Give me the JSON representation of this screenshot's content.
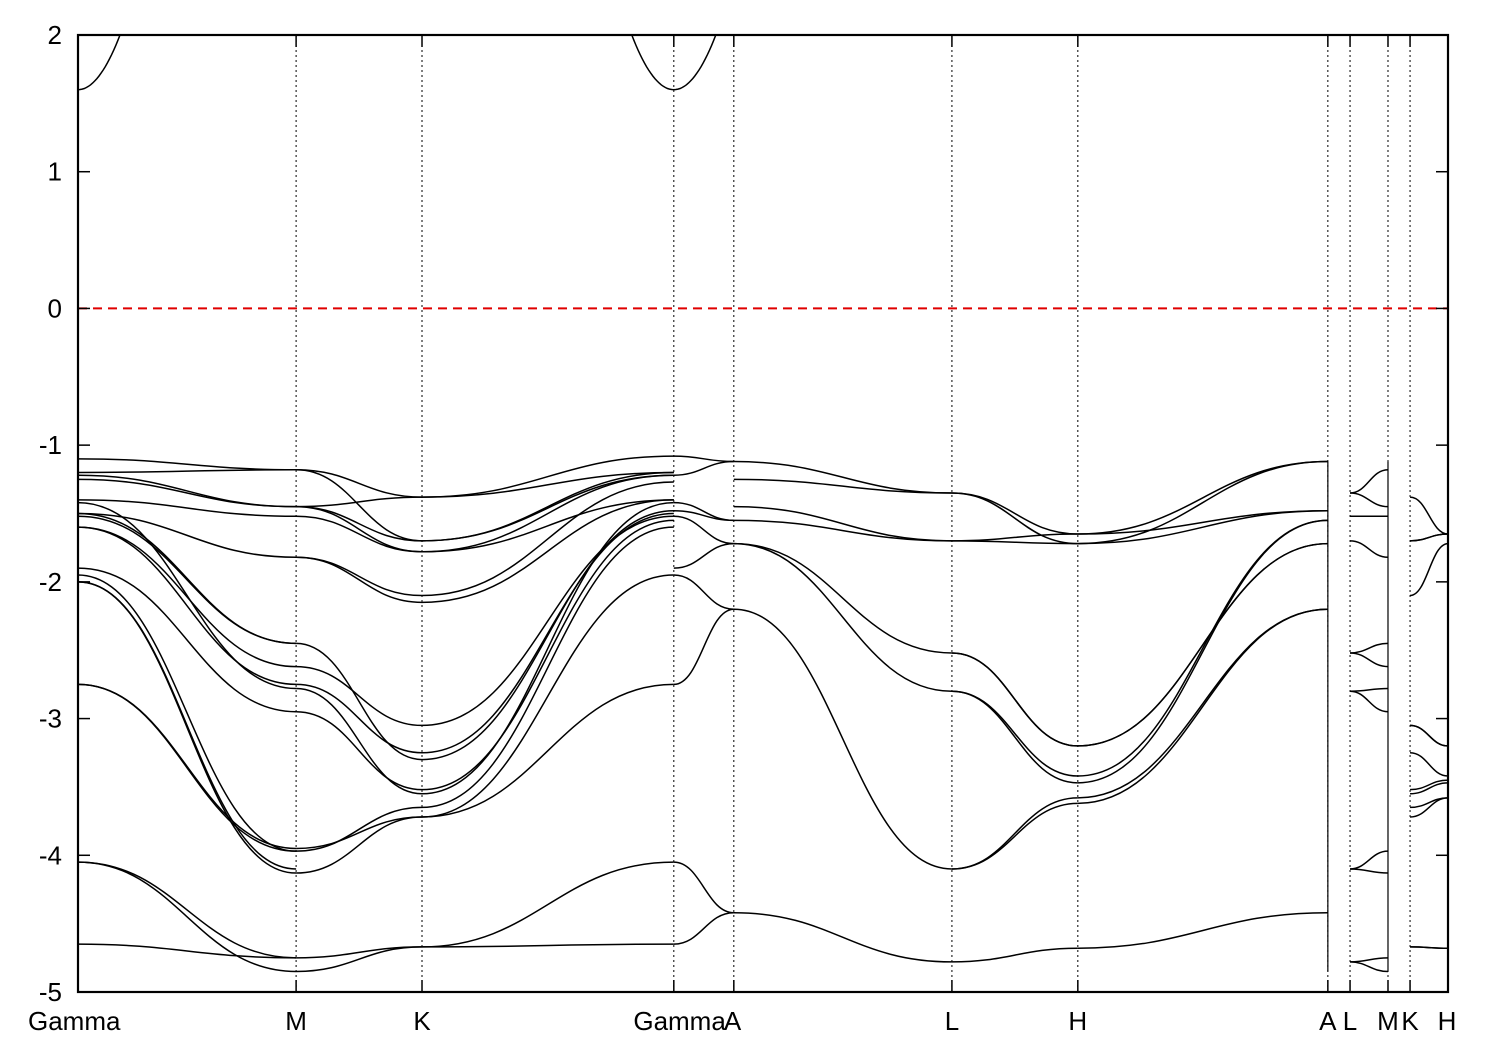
{
  "chart_data": {
    "type": "line",
    "title": "",
    "xlabel": "",
    "ylabel": "",
    "ylim": [
      -5,
      2
    ],
    "yticks": [
      "2",
      "1",
      "0",
      "-1",
      "-2",
      "-3",
      "-4",
      "-5"
    ],
    "x_path_units": "normalized path coordinate 0–1 along the Gamma–M–K–Gamma–A–L–H–A|L–M|K–H path",
    "kpoints": [
      {
        "label": "Gamma",
        "x": 0.0
      },
      {
        "label": "M",
        "x": 0.1592
      },
      {
        "label": "K",
        "x": 0.2511
      },
      {
        "label": "Gamma",
        "x": 0.4349
      },
      {
        "label": "A",
        "x": 0.4787
      },
      {
        "label": "L",
        "x": 0.6379
      },
      {
        "label": "H",
        "x": 0.7298
      },
      {
        "label": "A",
        "x": 0.9123
      },
      {
        "label": "L",
        "x": 0.9285
      },
      {
        "label": "M",
        "x": 0.9562
      },
      {
        "label": "K",
        "x": 0.9723
      },
      {
        "label": "H",
        "x": 1.0
      }
    ],
    "fermi_level": {
      "y": 0.0,
      "color": "#e00000"
    },
    "segments": [
      {
        "from": "Gamma",
        "to": "M",
        "bands": [
          [
            -4.65,
            -4.75
          ],
          [
            -4.05,
            -4.75
          ],
          [
            -4.05,
            -4.85
          ],
          [
            -2.75,
            -3.95
          ],
          [
            -2.75,
            -3.97
          ],
          [
            -2.0,
            -4.1
          ],
          [
            -2.0,
            -4.13
          ],
          [
            -1.95,
            -3.97
          ],
          [
            -1.9,
            -2.95
          ],
          [
            -1.6,
            -2.62
          ],
          [
            -1.6,
            -2.75
          ],
          [
            -1.52,
            -2.45
          ],
          [
            -1.5,
            -2.45
          ],
          [
            -1.5,
            -1.82
          ],
          [
            -1.42,
            -2.78
          ],
          [
            -1.4,
            -1.52
          ],
          [
            -1.25,
            -1.45
          ],
          [
            -1.22,
            -1.45
          ],
          [
            -1.1,
            -1.18
          ],
          [
            -1.2,
            -1.18
          ]
        ]
      },
      {
        "from": "M",
        "to": "K",
        "bands": [
          [
            -4.75,
            -4.67
          ],
          [
            -4.85,
            -4.67
          ],
          [
            -3.95,
            -3.72
          ],
          [
            -4.13,
            -3.72
          ],
          [
            -3.97,
            -3.65
          ],
          [
            -2.95,
            -3.52
          ],
          [
            -2.62,
            -3.05
          ],
          [
            -2.75,
            -3.25
          ],
          [
            -2.45,
            -3.3
          ],
          [
            -2.78,
            -3.55
          ],
          [
            -1.82,
            -2.15
          ],
          [
            -1.82,
            -2.1
          ],
          [
            -1.45,
            -1.78
          ],
          [
            -1.45,
            -1.7
          ],
          [
            -1.52,
            -1.78
          ],
          [
            -1.18,
            -1.7
          ],
          [
            -1.45,
            -1.38
          ],
          [
            -1.18,
            -1.38
          ]
        ]
      },
      {
        "from": "K",
        "to": "Gamma",
        "bands": [
          [
            -4.67,
            -4.65
          ],
          [
            -4.67,
            -4.05
          ],
          [
            -3.72,
            -2.75
          ],
          [
            -3.72,
            -1.95
          ],
          [
            -3.65,
            -1.6
          ],
          [
            -3.52,
            -1.55
          ],
          [
            -3.05,
            -1.52
          ],
          [
            -3.25,
            -1.5
          ],
          [
            -3.3,
            -1.48
          ],
          [
            -3.55,
            -1.42
          ],
          [
            -2.15,
            -1.4
          ],
          [
            -2.1,
            -1.27
          ],
          [
            -1.78,
            -1.22
          ],
          [
            -1.7,
            -1.2
          ],
          [
            -1.78,
            -1.4
          ],
          [
            -1.7,
            -1.22
          ],
          [
            -1.38,
            -1.08
          ],
          [
            -1.38,
            -1.2
          ]
        ]
      },
      {
        "from": "Gamma",
        "to": "A",
        "bands": [
          [
            -4.65,
            -4.42
          ],
          [
            -4.05,
            -4.42
          ],
          [
            -2.75,
            -2.2
          ],
          [
            -1.95,
            -2.2
          ],
          [
            -1.9,
            -1.72
          ],
          [
            -1.52,
            -1.72
          ],
          [
            -1.48,
            -1.55
          ],
          [
            -1.42,
            -1.55
          ],
          [
            -1.22,
            -1.12
          ],
          [
            -1.08,
            -1.12
          ]
        ]
      },
      {
        "from": "A",
        "to": "L",
        "bands": [
          [
            -4.42,
            -4.78
          ],
          [
            -2.2,
            -4.1
          ],
          [
            -1.72,
            -2.52
          ],
          [
            -1.72,
            -2.8
          ],
          [
            -1.55,
            -1.7
          ],
          [
            -1.45,
            -1.7
          ],
          [
            -1.12,
            -1.35
          ],
          [
            -1.25,
            -1.35
          ]
        ]
      },
      {
        "from": "L",
        "to": "H",
        "bands": [
          [
            -4.78,
            -4.68
          ],
          [
            -4.1,
            -3.58
          ],
          [
            -4.1,
            -3.62
          ],
          [
            -2.52,
            -3.2
          ],
          [
            -2.52,
            -3.2
          ],
          [
            -2.8,
            -3.42
          ],
          [
            -2.8,
            -3.47
          ],
          [
            -1.7,
            -1.72
          ],
          [
            -1.7,
            -1.65
          ],
          [
            -1.35,
            -1.72
          ],
          [
            -1.35,
            -1.65
          ]
        ]
      },
      {
        "from": "H",
        "to": "A",
        "bands": [
          [
            -4.68,
            -4.42
          ],
          [
            -3.58,
            -2.2
          ],
          [
            -3.62,
            -2.2
          ],
          [
            -3.2,
            -1.72
          ],
          [
            -3.2,
            -1.72
          ],
          [
            -3.42,
            -1.55
          ],
          [
            -3.47,
            -1.55
          ],
          [
            -1.72,
            -1.48
          ],
          [
            -1.65,
            -1.48
          ],
          [
            -1.72,
            -1.12
          ],
          [
            -1.65,
            -1.12
          ]
        ]
      },
      {
        "from": "L",
        "to": "M",
        "bands": [
          [
            -4.78,
            -4.75
          ],
          [
            -4.78,
            -4.85
          ],
          [
            -4.1,
            -3.97
          ],
          [
            -4.1,
            -4.13
          ],
          [
            -2.52,
            -2.45
          ],
          [
            -2.52,
            -2.62
          ],
          [
            -2.8,
            -2.78
          ],
          [
            -2.8,
            -2.95
          ],
          [
            -1.7,
            -1.82
          ],
          [
            -1.52,
            -1.52
          ],
          [
            -1.35,
            -1.45
          ],
          [
            -1.35,
            -1.18
          ]
        ]
      },
      {
        "from": "K",
        "to": "H",
        "bands": [
          [
            -4.67,
            -4.68
          ],
          [
            -4.67,
            -4.68
          ],
          [
            -3.05,
            -3.2
          ],
          [
            -3.05,
            -3.2
          ],
          [
            -3.25,
            -3.42
          ],
          [
            -3.52,
            -3.45
          ],
          [
            -3.55,
            -3.47
          ],
          [
            -3.65,
            -3.58
          ],
          [
            -3.72,
            -3.58
          ],
          [
            -2.1,
            -1.72
          ],
          [
            -1.7,
            -1.65
          ],
          [
            -1.7,
            -1.65
          ],
          [
            -1.38,
            -1.65
          ]
        ]
      },
      {
        "from": "Gamma",
        "to": "Gamma",
        "bands": [
          [
            1.6,
            2.0
          ]
        ]
      }
    ]
  }
}
